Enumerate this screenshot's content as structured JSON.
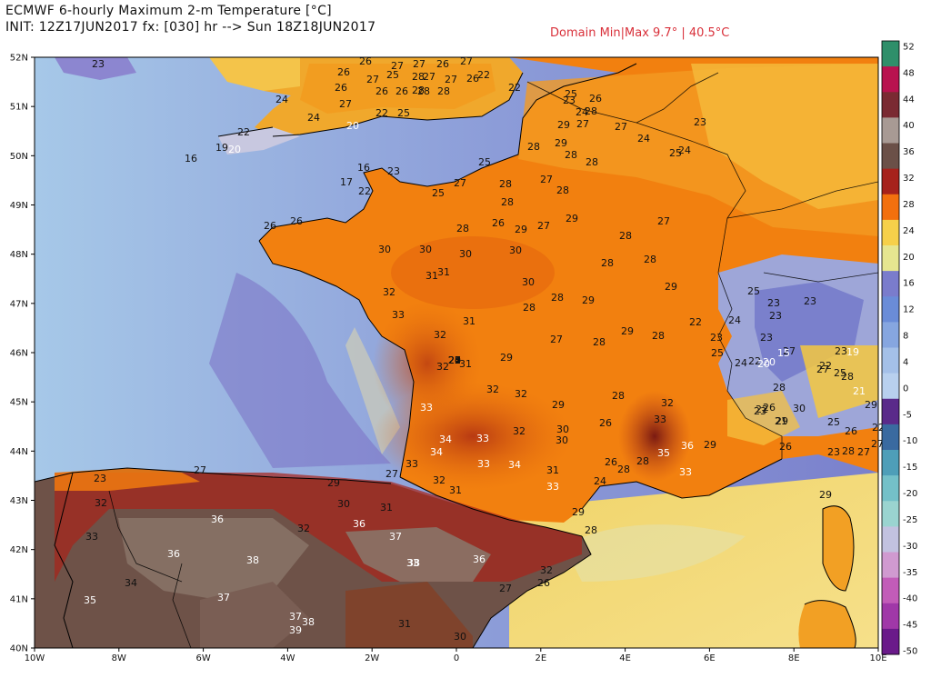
{
  "header": {
    "title": "ECMWF 6-hourly Maximum 2-m Temperature [°C]",
    "init": "INIT: 12Z17JUN2017 fx: [030] hr --> Sun 18Z18JUN2017",
    "domain_minmax": "Domain Min|Max 9.7° | 40.5°C"
  },
  "axes": {
    "lat_labels": [
      "52N",
      "51N",
      "50N",
      "49N",
      "48N",
      "47N",
      "46N",
      "45N",
      "44N",
      "43N",
      "42N",
      "41N",
      "40N"
    ],
    "lon_labels": [
      "10W",
      "8W",
      "6W",
      "4W",
      "2W",
      "0",
      "2E",
      "4E",
      "6E",
      "8E",
      "10E"
    ]
  },
  "colorbar": {
    "labels": [
      "52",
      "48",
      "44",
      "40",
      "36",
      "32",
      "28",
      "24",
      "20",
      "16",
      "12",
      "8",
      "4",
      "0",
      "-5",
      "-10",
      "-15",
      "-20",
      "-25",
      "-30",
      "-35",
      "-40",
      "-45",
      "-50"
    ],
    "colors": [
      "#2f8f6a",
      "#b8124f",
      "#7a2a32",
      "#a89a94",
      "#6b5048",
      "#a6221c",
      "#f2700e",
      "#f6d04a",
      "#e6e690",
      "#7a7ccc",
      "#6a8cd8",
      "#86a6e0",
      "#a4c0e8",
      "#b8d0ee",
      "#5a2a8a",
      "#3a6aa0",
      "#4e9eb8",
      "#74c0c8",
      "#9ad4d0",
      "#c2c2e0",
      "#d09ad0",
      "#c25cb8",
      "#a038a8",
      "#6a1a8a"
    ]
  },
  "colors": {
    "sea": "#9fc0e4",
    "sea_dark": "#7e8ad0",
    "france": "#f1820f",
    "iberia": "#6e5248",
    "alps": "#9ea6d8",
    "uk": "#f4c44a"
  },
  "values": [
    {
      "t": "23",
      "c": "d"
    },
    {
      "t": "26",
      "c": "d"
    },
    {
      "t": "27",
      "c": "d"
    },
    {
      "t": "27",
      "c": "d"
    },
    {
      "t": "26",
      "c": "d"
    },
    {
      "t": "27",
      "c": "d"
    },
    {
      "t": "26",
      "c": "d"
    },
    {
      "t": "26",
      "c": "d"
    },
    {
      "t": "27",
      "c": "d"
    },
    {
      "t": "25",
      "c": "d"
    },
    {
      "t": "28",
      "c": "d"
    },
    {
      "t": "26",
      "c": "d"
    },
    {
      "t": "28",
      "c": "d"
    },
    {
      "t": "27",
      "c": "d"
    },
    {
      "t": "27",
      "c": "d"
    },
    {
      "t": "26",
      "c": "d"
    },
    {
      "t": "28",
      "c": "d"
    },
    {
      "t": "26",
      "c": "d"
    },
    {
      "t": "28",
      "c": "d"
    },
    {
      "t": "22",
      "c": "d"
    },
    {
      "t": "25",
      "c": "d"
    },
    {
      "t": "22",
      "c": "d"
    },
    {
      "t": "27",
      "c": "d"
    },
    {
      "t": "22",
      "c": "d"
    },
    {
      "t": "25",
      "c": "d"
    },
    {
      "t": "24",
      "c": "d"
    },
    {
      "t": "20",
      "c": "w"
    },
    {
      "t": "22",
      "c": "d"
    },
    {
      "t": "24",
      "c": "d"
    },
    {
      "t": "19",
      "c": "d"
    },
    {
      "t": "20",
      "c": "w"
    },
    {
      "t": "16",
      "c": "d"
    },
    {
      "t": "16",
      "c": "d"
    },
    {
      "t": "23",
      "c": "d"
    },
    {
      "t": "17",
      "c": "d"
    },
    {
      "t": "22",
      "c": "d"
    },
    {
      "t": "26",
      "c": "d"
    },
    {
      "t": "26",
      "c": "d"
    },
    {
      "t": "28",
      "c": "d"
    },
    {
      "t": "28",
      "c": "d"
    },
    {
      "t": "27",
      "c": "d"
    },
    {
      "t": "29",
      "c": "d"
    },
    {
      "t": "25",
      "c": "d"
    },
    {
      "t": "23",
      "c": "d"
    },
    {
      "t": "24",
      "c": "d"
    },
    {
      "t": "26",
      "c": "d"
    },
    {
      "t": "28",
      "c": "d"
    },
    {
      "t": "27",
      "c": "d"
    },
    {
      "t": "28",
      "c": "d"
    },
    {
      "t": "29",
      "c": "d"
    },
    {
      "t": "28",
      "c": "d"
    },
    {
      "t": "25",
      "c": "d"
    },
    {
      "t": "27",
      "c": "d"
    },
    {
      "t": "27",
      "c": "d"
    },
    {
      "t": "28",
      "c": "d"
    },
    {
      "t": "28",
      "c": "d"
    },
    {
      "t": "28",
      "c": "d"
    },
    {
      "t": "27",
      "c": "d"
    },
    {
      "t": "26",
      "c": "d"
    },
    {
      "t": "24",
      "c": "d"
    },
    {
      "t": "25",
      "c": "d"
    },
    {
      "t": "24",
      "c": "d"
    },
    {
      "t": "23",
      "c": "d"
    },
    {
      "t": "30",
      "c": "d"
    },
    {
      "t": "30",
      "c": "d"
    },
    {
      "t": "30",
      "c": "d"
    },
    {
      "t": "30",
      "c": "d"
    },
    {
      "t": "29",
      "c": "d"
    },
    {
      "t": "28",
      "c": "d"
    },
    {
      "t": "29",
      "c": "d"
    },
    {
      "t": "32",
      "c": "d"
    },
    {
      "t": "31",
      "c": "d"
    },
    {
      "t": "31",
      "c": "d"
    },
    {
      "t": "30",
      "c": "d"
    },
    {
      "t": "28",
      "c": "d"
    },
    {
      "t": "27",
      "c": "d"
    },
    {
      "t": "28",
      "c": "d"
    },
    {
      "t": "33",
      "c": "d"
    },
    {
      "t": "32",
      "c": "d"
    },
    {
      "t": "31",
      "c": "d"
    },
    {
      "t": "28",
      "c": "d"
    },
    {
      "t": "29",
      "c": "d"
    },
    {
      "t": "28",
      "c": "d"
    },
    {
      "t": "29",
      "c": "d"
    },
    {
      "t": "32",
      "c": "d"
    },
    {
      "t": "31",
      "c": "d"
    },
    {
      "t": "29",
      "c": "d"
    },
    {
      "t": "27",
      "c": "d"
    },
    {
      "t": "28",
      "c": "d"
    },
    {
      "t": "29",
      "c": "d"
    },
    {
      "t": "28",
      "c": "d"
    },
    {
      "t": "33",
      "c": "w"
    },
    {
      "t": "32",
      "c": "d"
    },
    {
      "t": "32",
      "c": "d"
    },
    {
      "t": "29",
      "c": "d"
    },
    {
      "t": "28",
      "c": "d"
    },
    {
      "t": "30",
      "c": "d"
    },
    {
      "t": "32",
      "c": "d"
    },
    {
      "t": "34",
      "c": "w"
    },
    {
      "t": "33",
      "c": "w"
    },
    {
      "t": "32",
      "c": "d"
    },
    {
      "t": "30",
      "c": "d"
    },
    {
      "t": "26",
      "c": "d"
    },
    {
      "t": "33",
      "c": "d"
    },
    {
      "t": "36",
      "c": "w"
    },
    {
      "t": "34",
      "c": "w"
    },
    {
      "t": "33",
      "c": "w"
    },
    {
      "t": "34",
      "c": "w"
    },
    {
      "t": "31",
      "c": "d"
    },
    {
      "t": "28",
      "c": "d"
    },
    {
      "t": "35",
      "c": "w"
    },
    {
      "t": "29",
      "c": "d"
    },
    {
      "t": "33",
      "c": "d"
    },
    {
      "t": "32",
      "c": "d"
    },
    {
      "t": "31",
      "c": "d"
    },
    {
      "t": "33",
      "c": "w"
    },
    {
      "t": "24",
      "c": "d"
    },
    {
      "t": "28",
      "c": "d"
    },
    {
      "t": "33",
      "c": "w"
    },
    {
      "t": "27",
      "c": "d"
    },
    {
      "t": "29",
      "c": "d"
    },
    {
      "t": "30",
      "c": "d"
    },
    {
      "t": "31",
      "c": "d"
    },
    {
      "t": "29",
      "c": "d"
    },
    {
      "t": "28",
      "c": "d"
    },
    {
      "t": "26",
      "c": "d"
    },
    {
      "t": "32",
      "c": "d"
    },
    {
      "t": "36",
      "c": "w"
    },
    {
      "t": "32",
      "c": "d"
    },
    {
      "t": "36",
      "c": "w"
    },
    {
      "t": "37",
      "c": "w"
    },
    {
      "t": "33",
      "c": "w"
    },
    {
      "t": "27",
      "c": "d"
    },
    {
      "t": "33",
      "c": "d"
    },
    {
      "t": "36",
      "c": "w"
    },
    {
      "t": "38",
      "c": "w"
    },
    {
      "t": "38",
      "c": "w"
    },
    {
      "t": "36",
      "c": "w"
    },
    {
      "t": "32",
      "c": "d"
    },
    {
      "t": "26",
      "c": "d"
    },
    {
      "t": "34",
      "c": "d"
    },
    {
      "t": "37",
      "c": "w"
    },
    {
      "t": "37",
      "c": "w"
    },
    {
      "t": "38",
      "c": "w"
    },
    {
      "t": "31",
      "c": "d"
    },
    {
      "t": "27",
      "c": "d"
    },
    {
      "t": "30",
      "c": "d"
    },
    {
      "t": "35",
      "c": "w"
    },
    {
      "t": "39",
      "c": "w"
    },
    {
      "t": "23",
      "c": "d"
    },
    {
      "t": "25",
      "c": "d"
    },
    {
      "t": "24",
      "c": "d"
    },
    {
      "t": "22",
      "c": "d"
    },
    {
      "t": "23",
      "c": "d"
    },
    {
      "t": "25",
      "c": "d"
    },
    {
      "t": "23",
      "c": "d"
    },
    {
      "t": "22",
      "c": "d"
    },
    {
      "t": "24",
      "c": "d"
    },
    {
      "t": "23",
      "c": "d"
    },
    {
      "t": "27",
      "c": "d"
    },
    {
      "t": "26",
      "c": "d"
    },
    {
      "t": "23",
      "c": "d"
    },
    {
      "t": "23",
      "c": "d"
    },
    {
      "t": "20",
      "c": "w"
    },
    {
      "t": "21",
      "c": "d"
    },
    {
      "t": "22",
      "c": "d"
    },
    {
      "t": "23",
      "c": "d"
    },
    {
      "t": "21",
      "c": "w"
    },
    {
      "t": "23",
      "c": "d"
    },
    {
      "t": "22",
      "c": "d"
    },
    {
      "t": "20",
      "c": "w"
    },
    {
      "t": "15",
      "c": "w"
    },
    {
      "t": "19",
      "c": "w"
    },
    {
      "t": "27",
      "c": "d"
    },
    {
      "t": "28",
      "c": "d"
    },
    {
      "t": "25",
      "c": "d"
    },
    {
      "t": "28",
      "c": "d"
    },
    {
      "t": "29",
      "c": "d"
    },
    {
      "t": "30",
      "c": "d"
    },
    {
      "t": "29",
      "c": "d"
    },
    {
      "t": "25",
      "c": "d"
    },
    {
      "t": "22",
      "c": "d"
    },
    {
      "t": "26",
      "c": "d"
    },
    {
      "t": "23",
      "c": "d"
    },
    {
      "t": "28",
      "c": "d"
    },
    {
      "t": "27",
      "c": "d"
    },
    {
      "t": "29",
      "c": "d"
    },
    {
      "t": "26",
      "c": "d"
    },
    {
      "t": "27",
      "c": "d"
    },
    {
      "t": "25",
      "c": "d"
    },
    {
      "t": "20",
      "c": "d"
    },
    {
      "t": "27",
      "c": "d"
    },
    {
      "t": "22",
      "c": "d"
    },
    {
      "t": "24",
      "c": "d"
    },
    {
      "t": "23",
      "c": "d"
    },
    {
      "t": "21",
      "c": "d"
    }
  ]
}
